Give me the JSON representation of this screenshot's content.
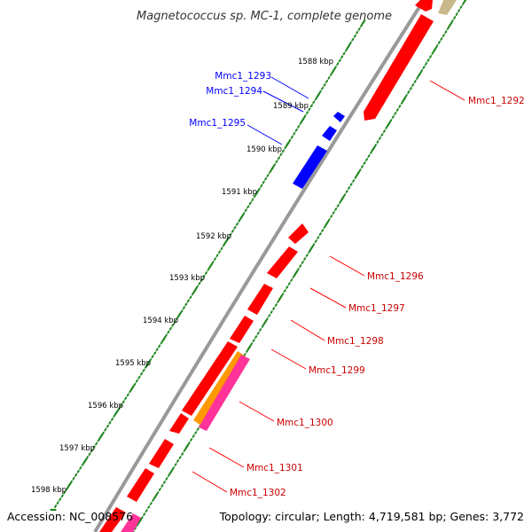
{
  "title": "Magnetococcus sp. MC-1, complete genome",
  "accession": "Accession: NC_008576",
  "topology": "Topology: circular; Length: 4,719,581 bp; Genes: 3,772",
  "colors": {
    "forward": "#ff0000",
    "reverse": "#0000ff",
    "orange": "#ff9900",
    "pink": "#ff3399",
    "tan": "#c8b88a",
    "backbone": "#999999",
    "ticks": "#228822"
  },
  "kbp_labels": [
    "1588 kbp",
    "1589 kbp",
    "1590 kbp",
    "1591 kbp",
    "1592 kbp",
    "1593 kbp",
    "1594 kbp",
    "1595 kbp",
    "1596 kbp",
    "1597 kbp",
    "1598 kbp"
  ],
  "reverse_genes": [
    "Mmc1_1293",
    "Mmc1_1294",
    "Mmc1_1295"
  ],
  "forward_genes": [
    "Mmc1_1292",
    "Mmc1_1296",
    "Mmc1_1297",
    "Mmc1_1298",
    "Mmc1_1299",
    "Mmc1_1300",
    "Mmc1_1301",
    "Mmc1_1302"
  ]
}
